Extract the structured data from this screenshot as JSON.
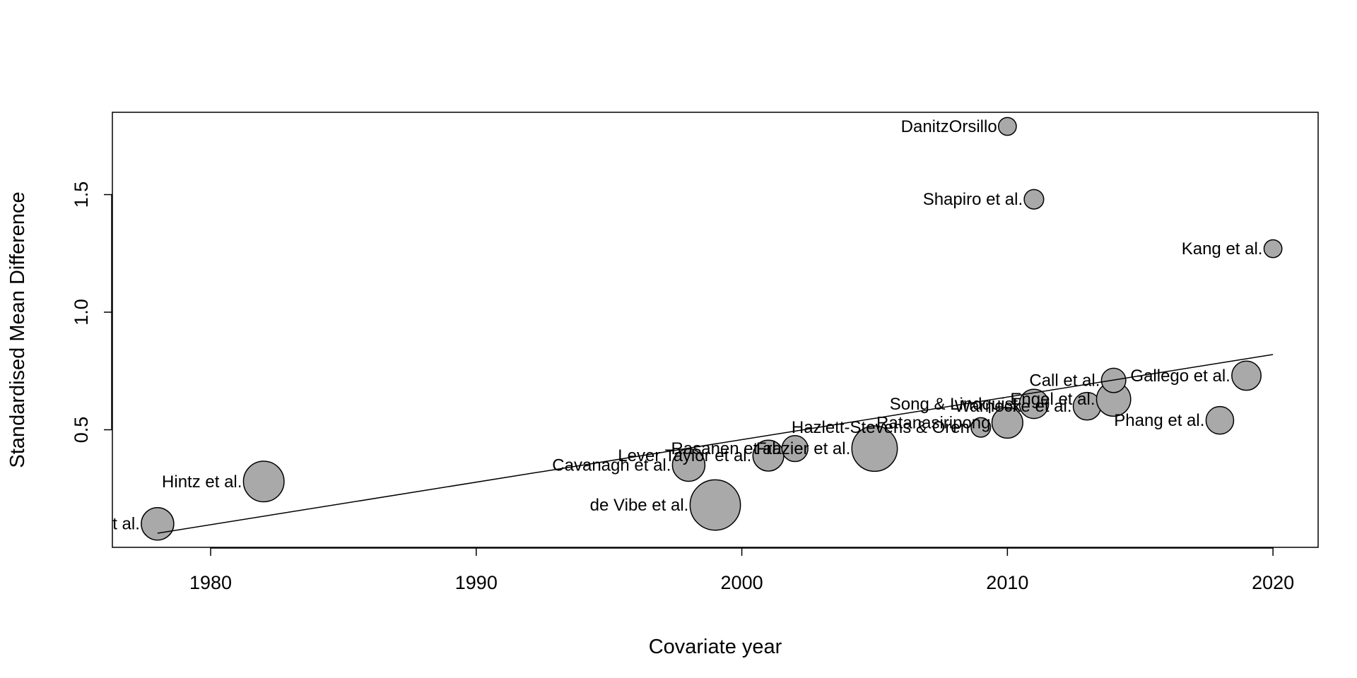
{
  "chart_data": {
    "type": "scatter",
    "title": "",
    "xlabel": "Covariate year",
    "ylabel": "Standardised Mean Difference",
    "xlim": [
      1976.3,
      2021.7
    ],
    "ylim": [
      0.0,
      1.85
    ],
    "xticks": [
      1980,
      1990,
      2000,
      2010,
      2020
    ],
    "yticks": [
      0.5,
      1.0,
      1.5
    ],
    "grid": false,
    "legend": "none",
    "point_fill": "#a9a9a9",
    "point_stroke": "#000000",
    "regression_line": {
      "x": [
        1978,
        2020
      ],
      "y": [
        0.06,
        0.82
      ]
    },
    "points": [
      {
        "label": "t al.",
        "x": 1978,
        "y": 0.1,
        "size": 1.0
      },
      {
        "label": "Hintz et al.",
        "x": 1982,
        "y": 0.28,
        "size": 1.25
      },
      {
        "label": "Cavanagh et al.",
        "x": 1998,
        "y": 0.35,
        "size": 1.0
      },
      {
        "label": "de Vibe et al.",
        "x": 1999,
        "y": 0.18,
        "size": 1.55
      },
      {
        "label": "Lever Taylor et al.",
        "x": 2001,
        "y": 0.39,
        "size": 0.95
      },
      {
        "label": "Rasanen et al.",
        "x": 2002,
        "y": 0.42,
        "size": 0.8
      },
      {
        "label": "Frazier et al.",
        "x": 2005,
        "y": 0.42,
        "size": 1.4
      },
      {
        "label": "Hazlett-Stevens & Oren",
        "x": 2009,
        "y": 0.51,
        "size": 0.6
      },
      {
        "label": "Ratanasiripong",
        "x": 2010,
        "y": 0.53,
        "size": 0.95
      },
      {
        "label": "Song & Lindquist",
        "x": 2011,
        "y": 0.61,
        "size": 0.9
      },
      {
        "label": "Warnecke et al.",
        "x": 2013,
        "y": 0.6,
        "size": 0.85
      },
      {
        "label": "Engel et al.",
        "x": 2014,
        "y": 0.63,
        "size": 1.05
      },
      {
        "label": "Call et al.",
        "x": 2014,
        "y": 0.71,
        "size": 0.75
      },
      {
        "label": "Gallego et al.",
        "x": 2019,
        "y": 0.73,
        "size": 0.9
      },
      {
        "label": "Phang et al.",
        "x": 2018,
        "y": 0.54,
        "size": 0.85
      },
      {
        "label": "DanitzOrsillo",
        "x": 2010,
        "y": 1.79,
        "size": 0.55
      },
      {
        "label": "Shapiro et al.",
        "x": 2011,
        "y": 1.48,
        "size": 0.6
      },
      {
        "label": "Kang et al.",
        "x": 2020,
        "y": 1.27,
        "size": 0.55
      }
    ]
  }
}
